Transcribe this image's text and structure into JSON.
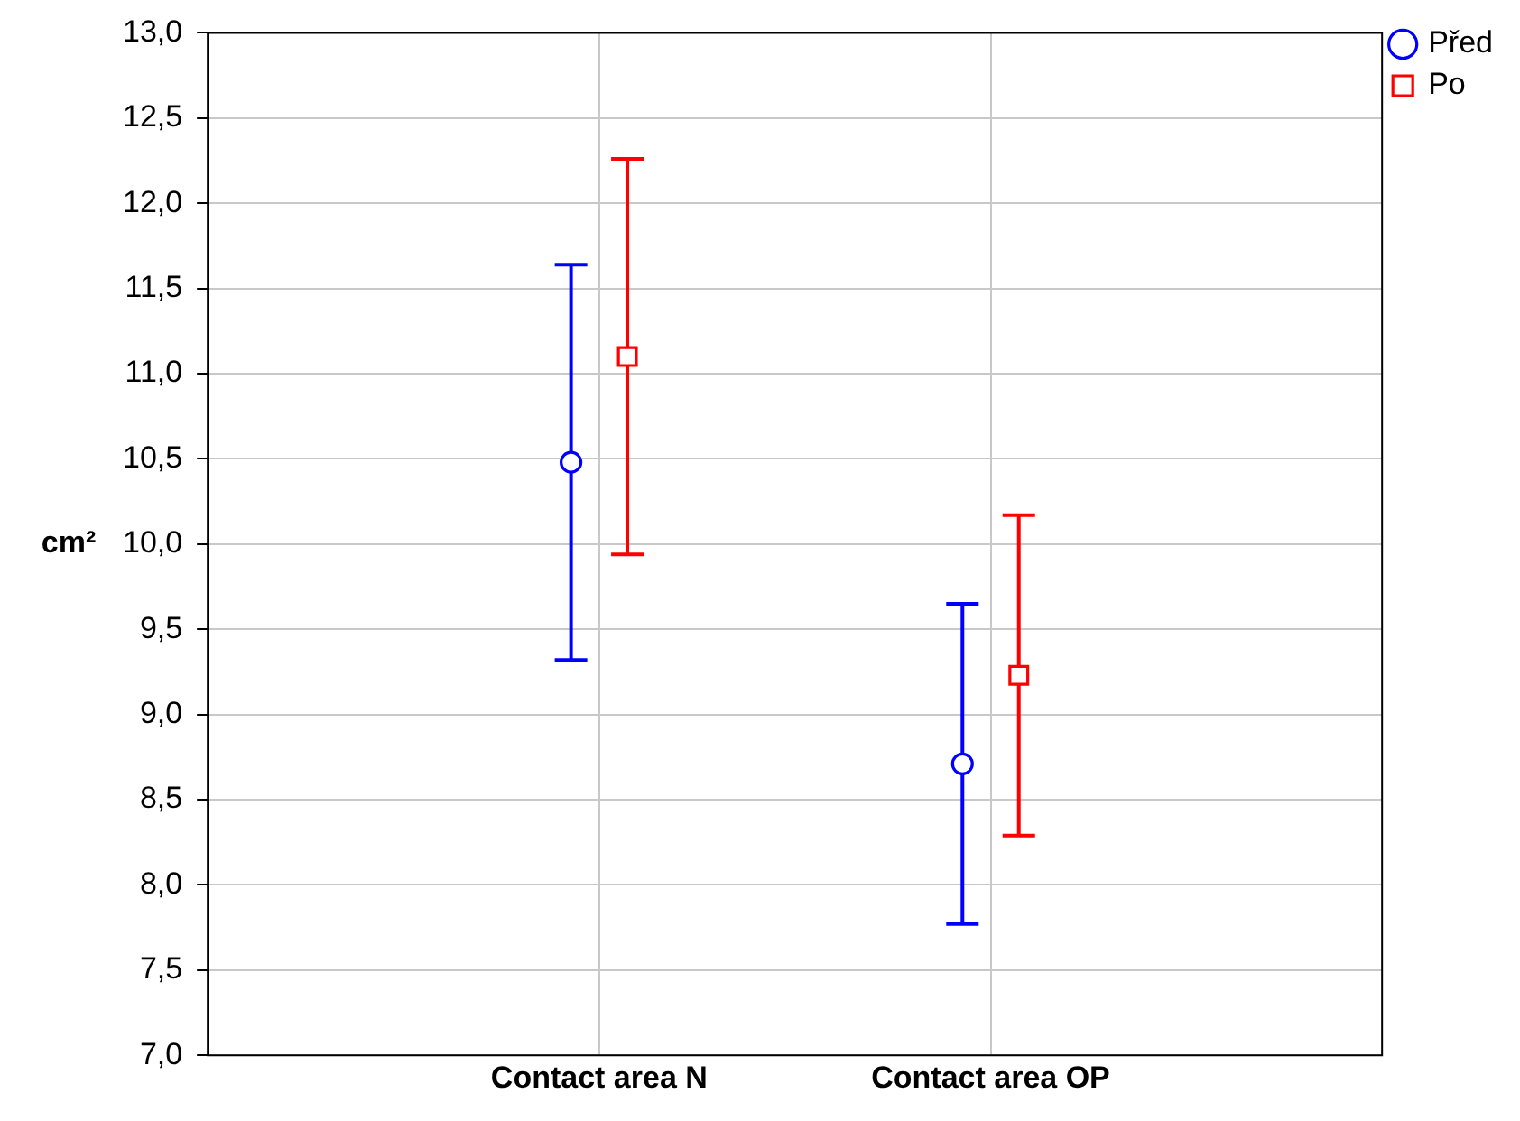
{
  "chart_data": {
    "type": "scatter",
    "ylabel": "cm²",
    "categories": [
      "Contact area N",
      "Contact area OP"
    ],
    "series": [
      {
        "name": "Před",
        "color": "#0000ff",
        "marker": "circle",
        "values": [
          10.48,
          8.71
        ],
        "errors": [
          1.16,
          0.94
        ]
      },
      {
        "name": "Po",
        "color": "#ff0000",
        "marker": "square",
        "values": [
          11.1,
          9.23
        ],
        "errors": [
          1.16,
          0.94
        ]
      }
    ],
    "ylim": [
      7,
      13
    ],
    "yticks": [
      {
        "value": 7,
        "label": "7,0"
      },
      {
        "value": 7.5,
        "label": "7,5"
      },
      {
        "value": 8,
        "label": "8,0"
      },
      {
        "value": 8.5,
        "label": "8,5"
      },
      {
        "value": 9,
        "label": "9,0"
      },
      {
        "value": 9.5,
        "label": "9,5"
      },
      {
        "value": 10,
        "label": "10,0"
      },
      {
        "value": 10.5,
        "label": "10,5"
      },
      {
        "value": 11,
        "label": "11,0"
      },
      {
        "value": 11.5,
        "label": "11,5"
      },
      {
        "value": 12,
        "label": "12,0"
      },
      {
        "value": 12.5,
        "label": "12,5"
      },
      {
        "value": 13,
        "label": "13,0"
      }
    ],
    "grid": true,
    "legend": "top right"
  }
}
